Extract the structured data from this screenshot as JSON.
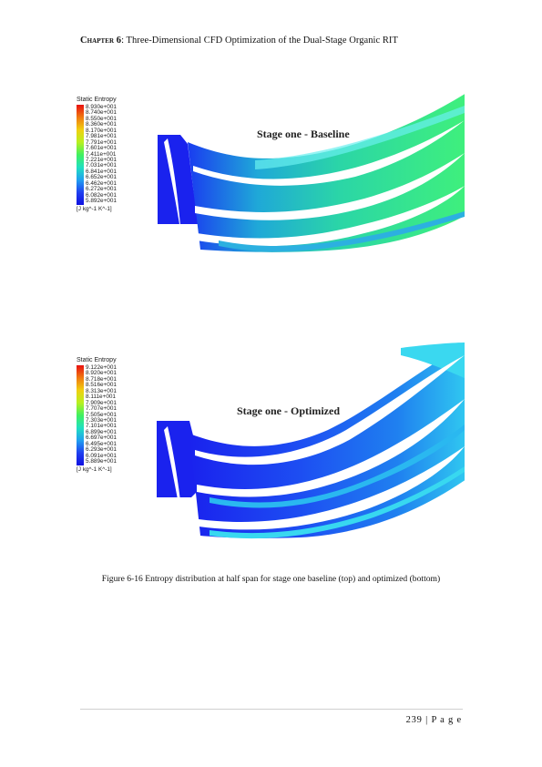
{
  "header": {
    "chapter_label": "Chapter 6",
    "chapter_title": ": Three-Dimensional CFD Optimization of the Dual-Stage Organic RIT"
  },
  "figures": [
    {
      "id": "baseline",
      "stage_label": "Stage one - Baseline",
      "legend_title": "Static Entropy",
      "legend_values": [
        "8.930e+001",
        "8.740e+001",
        "8.550e+001",
        "8.360e+001",
        "8.170e+001",
        "7.981e+001",
        "7.791e+001",
        "7.601e+001",
        "7.411e+001",
        "7.221e+001",
        "7.031e+001",
        "6.841e+001",
        "6.652e+001",
        "6.462e+001",
        "6.272e+001",
        "6.082e+001",
        "5.892e+001"
      ],
      "legend_unit": "[J kg^-1 K^-1]",
      "dominant_color": "#2fe07a",
      "colors": {
        "inlet": "#1a22ee",
        "passage": "#25d4a0",
        "wake": "#36f08a",
        "blade": "#ffffff"
      }
    },
    {
      "id": "optimized",
      "stage_label": "Stage one - Optimized",
      "legend_title": "Static Entropy",
      "legend_values": [
        "9.122e+001",
        "8.920e+001",
        "8.718e+001",
        "8.516e+001",
        "8.313e+001",
        "8.111e+001",
        "7.909e+001",
        "7.707e+001",
        "7.505e+001",
        "7.303e+001",
        "7.101e+001",
        "6.899e+001",
        "6.697e+001",
        "6.495e+001",
        "6.293e+001",
        "6.091e+001",
        "5.889e+001"
      ],
      "legend_unit": "[J kg^-1 K^-1]",
      "dominant_color": "#1e6af0",
      "colors": {
        "inlet": "#1a22ee",
        "passage": "#1d5ef2",
        "wake": "#28c8f0",
        "blade": "#ffffff"
      }
    }
  ],
  "caption": "Figure 6-16 Entropy distribution at half span for stage one baseline (top) and optimized (bottom)",
  "footer": {
    "page": "239",
    "sep": "|",
    "label": "P a g e"
  }
}
